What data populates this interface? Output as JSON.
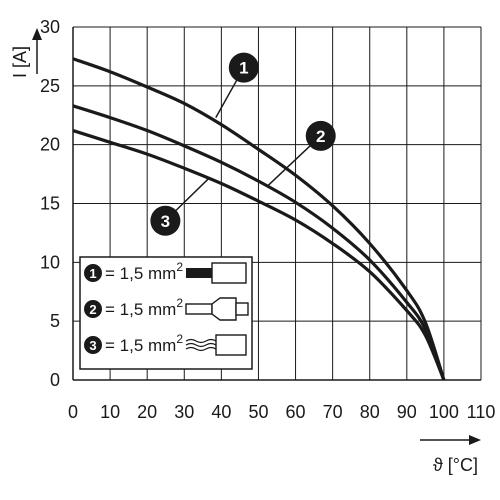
{
  "chart_data": {
    "type": "line",
    "xlabel": "ϑ [°C]",
    "ylabel": "I [A]",
    "xlim": [
      0,
      110
    ],
    "ylim": [
      0,
      30
    ],
    "xticks": [
      0,
      10,
      20,
      30,
      40,
      50,
      60,
      70,
      80,
      90,
      100,
      110
    ],
    "yticks": [
      0,
      5,
      10,
      15,
      20,
      25,
      30
    ],
    "grid": true,
    "series": [
      {
        "marker": "1",
        "x": [
          0,
          10,
          20,
          30,
          40,
          50,
          60,
          70,
          80,
          90,
          95,
          100
        ],
        "y": [
          27.3,
          26.2,
          24.9,
          23.5,
          21.7,
          19.6,
          17.4,
          14.8,
          11.6,
          7.6,
          4.9,
          0
        ]
      },
      {
        "marker": "2",
        "x": [
          0,
          10,
          20,
          30,
          40,
          50,
          60,
          70,
          80,
          90,
          95,
          100
        ],
        "y": [
          23.3,
          22.3,
          21.2,
          19.9,
          18.5,
          16.9,
          15.1,
          12.9,
          10.2,
          6.6,
          4.3,
          0
        ]
      },
      {
        "marker": "3",
        "x": [
          0,
          10,
          20,
          30,
          40,
          50,
          60,
          70,
          80,
          90,
          95,
          100
        ],
        "y": [
          21.2,
          20.2,
          19.2,
          18.0,
          16.7,
          15.2,
          13.6,
          11.6,
          9.2,
          5.9,
          3.8,
          0
        ]
      }
    ],
    "legend": {
      "position": "lower-left",
      "entries": [
        {
          "marker": "1",
          "text": "= 1,5 mm",
          "superscript": "2",
          "icon": "solid-conductor-icon"
        },
        {
          "marker": "2",
          "text": "= 1,5 mm",
          "superscript": "2",
          "icon": "ferrule-conductor-icon"
        },
        {
          "marker": "3",
          "text": "= 1,5 mm",
          "superscript": "2",
          "icon": "stranded-conductor-icon"
        }
      ]
    },
    "annotations": [
      {
        "marker": "1",
        "anchor_x": 38.5,
        "anchor_y": 22.3
      },
      {
        "marker": "2",
        "anchor_x": 52.5,
        "anchor_y": 16.5
      },
      {
        "marker": "3",
        "anchor_x": 36.5,
        "anchor_y": 17.1
      }
    ]
  }
}
